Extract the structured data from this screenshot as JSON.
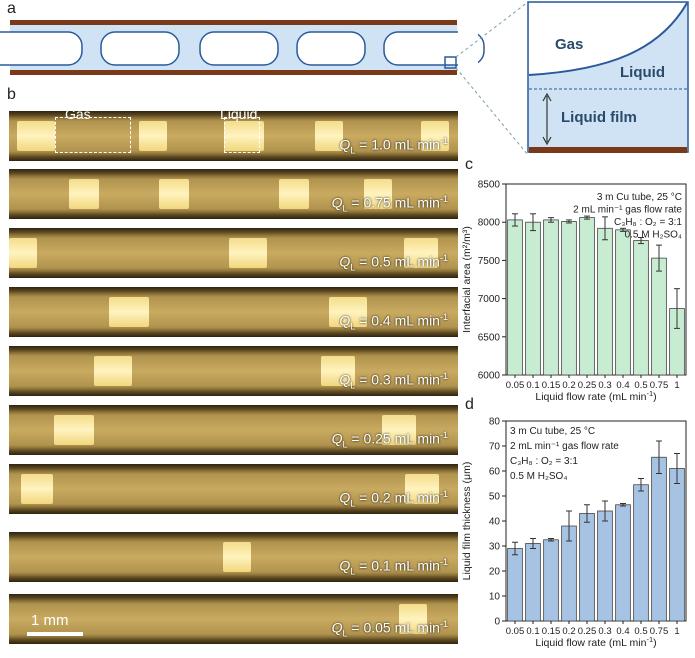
{
  "panels": {
    "a": "a",
    "b": "b",
    "c": "c",
    "d": "d"
  },
  "schematic": {
    "gas_label": "Gas",
    "liquid_label": "Liquid",
    "film_label": "Liquid film"
  },
  "micrographs": {
    "gas_label": "Gas",
    "liquid_label": "Liquid",
    "scale_bar": "1 mm",
    "q_symbol": "Q",
    "q_sub": "L",
    "unit_prefix": " mL min",
    "unit_sup": "-1",
    "strips": [
      {
        "value": " = 1.0"
      },
      {
        "value": " = 0.75"
      },
      {
        "value": " = 0.5"
      },
      {
        "value": " = 0.4"
      },
      {
        "value": " = 0.3"
      },
      {
        "value": " = 0.25"
      },
      {
        "value": " = 0.2"
      },
      {
        "value": " = 0.1"
      },
      {
        "value": " = 0.05"
      }
    ]
  },
  "chart_data": [
    {
      "type": "bar",
      "panel": "c",
      "categories": [
        "0.05",
        "0.1",
        "0.15",
        "0.2",
        "0.25",
        "0.3",
        "0.4",
        "0.5",
        "0.75",
        "1"
      ],
      "values": [
        8030,
        8000,
        8030,
        8010,
        8060,
        7920,
        7900,
        7760,
        7530,
        6870
      ],
      "errors": [
        80,
        110,
        30,
        20,
        20,
        150,
        20,
        40,
        170,
        260
      ],
      "xlabel": "Liquid flow rate (mL min",
      "xlabel_sup": "-1",
      "xlabel_end": ")",
      "ylabel": "Interfacial area (m²/m³)",
      "ylim": [
        6000,
        8500
      ],
      "yticks": [
        6000,
        6500,
        7000,
        7500,
        8000,
        8500
      ],
      "color": "#c8ecd2",
      "annotations": [
        "3 m Cu tube, 25 °C",
        "2 mL min⁻¹ gas flow rate",
        "C₃H₈ : O₂ = 3:1",
        "0.5 M H₂SO₄"
      ]
    },
    {
      "type": "bar",
      "panel": "d",
      "categories": [
        "0.05",
        "0.1",
        "0.15",
        "0.2",
        "0.25",
        "0.3",
        "0.4",
        "0.5",
        "0.75",
        "1"
      ],
      "values": [
        29,
        31,
        32.5,
        38,
        43,
        44,
        46.5,
        54.5,
        65.5,
        61
      ],
      "errors": [
        2.5,
        2,
        0.5,
        6,
        3.5,
        4,
        0.5,
        2.5,
        6.5,
        6
      ],
      "xlabel": "Liquid flow rate (mL min",
      "xlabel_sup": "-1",
      "xlabel_end": ")",
      "ylabel": "Liquid film thickness (μm)",
      "ylim": [
        0,
        80
      ],
      "yticks": [
        0,
        10,
        20,
        30,
        40,
        50,
        60,
        70,
        80
      ],
      "color": "#a7c3e4",
      "annotations": [
        "3 m Cu tube, 25 °C",
        "2 mL min⁻¹ gas flow rate",
        "C₃H₈ : O₂ = 3:1",
        "0.5 M H₂SO₄"
      ]
    }
  ]
}
